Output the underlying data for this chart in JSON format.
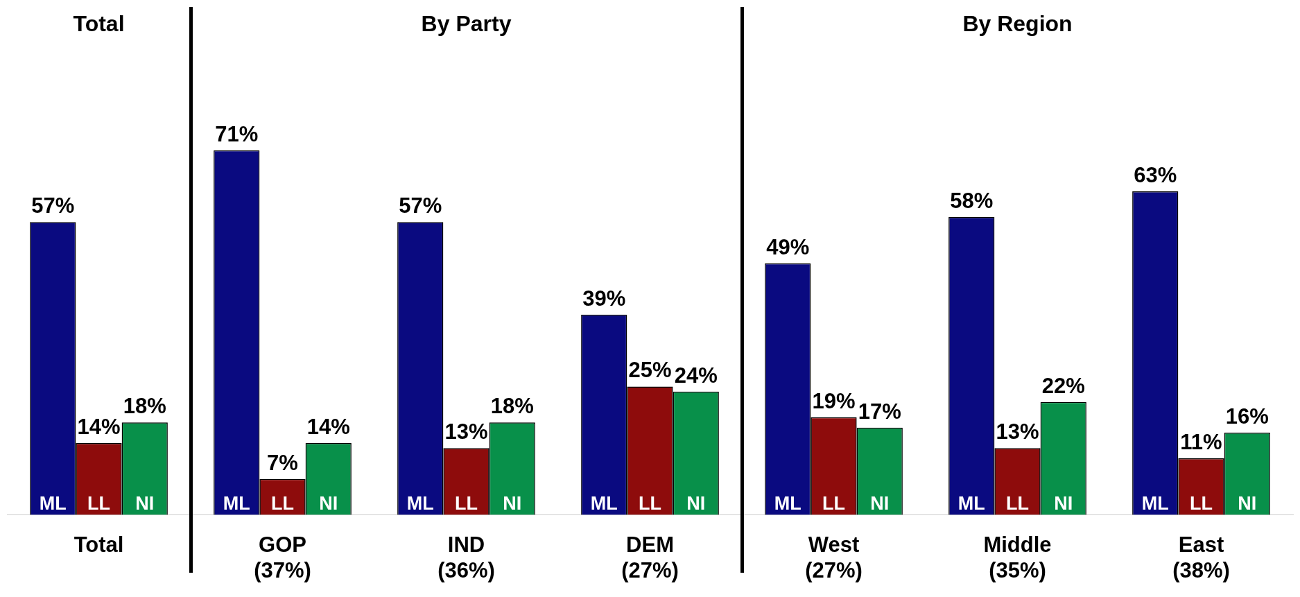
{
  "chart_data": {
    "type": "bar",
    "categories": [
      "Total",
      "GOP\n(37%)",
      "IND\n(36%)",
      "DEM\n(27%)",
      "West\n(27%)",
      "Middle\n(35%)",
      "East\n(38%)"
    ],
    "series": [
      {
        "name": "ML",
        "color": "#0a0a80",
        "values": [
          57,
          71,
          57,
          39,
          49,
          58,
          63
        ],
        "value_labels": [
          "57%",
          "71%",
          "57%",
          "39%",
          "49%",
          "58%",
          "63%"
        ]
      },
      {
        "name": "LL",
        "color": "#8e0c0c",
        "values": [
          14,
          7,
          13,
          25,
          19,
          13,
          11
        ],
        "value_labels": [
          "14%",
          "7%",
          "13%",
          "25%",
          "19%",
          "13%",
          "11%"
        ]
      },
      {
        "name": "NI",
        "color": "#08904a",
        "values": [
          18,
          14,
          18,
          24,
          17,
          22,
          16
        ],
        "value_labels": [
          "18%",
          "14%",
          "18%",
          "24%",
          "17%",
          "22%",
          "16%"
        ]
      }
    ],
    "annotations": [
      "Total",
      "By Party",
      "By Region"
    ],
    "legend": false
  }
}
